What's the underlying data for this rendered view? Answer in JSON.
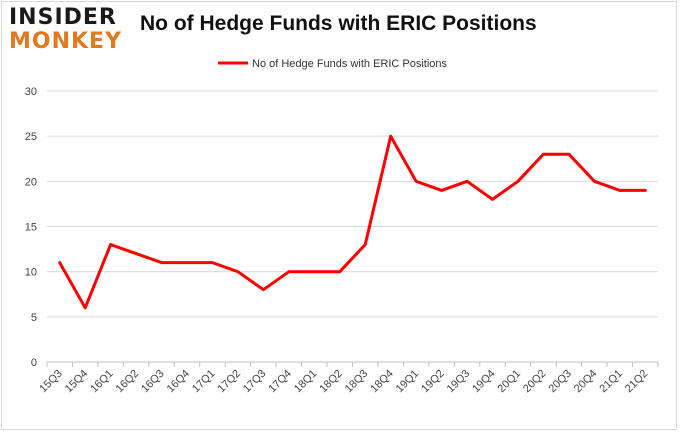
{
  "logo": {
    "line1": "INSIDER",
    "line2": "MONKEY"
  },
  "colors": {
    "series": "#ff0000",
    "grid": "#d9d9d9",
    "axis": "#bfbfbf",
    "logo_dark": "#1a1a1a",
    "logo_accent": "#e07a1f"
  },
  "chart_data": {
    "type": "line",
    "title": "No of Hedge Funds with ERIC Positions",
    "xlabel": "",
    "ylabel": "",
    "ylim": [
      0,
      30
    ],
    "yticks": [
      0,
      5,
      10,
      15,
      20,
      25,
      30
    ],
    "grid": "horizontal",
    "legend": "top-center",
    "categories": [
      "15Q3",
      "15Q4",
      "16Q1",
      "16Q2",
      "16Q3",
      "16Q4",
      "17Q1",
      "17Q2",
      "17Q3",
      "17Q4",
      "18Q1",
      "18Q2",
      "18Q3",
      "18Q4",
      "19Q1",
      "19Q2",
      "19Q3",
      "19Q4",
      "20Q1",
      "20Q2",
      "20Q3",
      "20Q4",
      "21Q1",
      "21Q2"
    ],
    "series": [
      {
        "name": "No of Hedge Funds with ERIC Positions",
        "color": "#ff0000",
        "values": [
          11,
          6,
          13,
          12,
          11,
          11,
          11,
          10,
          8,
          10,
          10,
          10,
          13,
          25,
          20,
          19,
          20,
          18,
          20,
          23,
          23,
          20,
          19,
          19
        ]
      }
    ]
  }
}
